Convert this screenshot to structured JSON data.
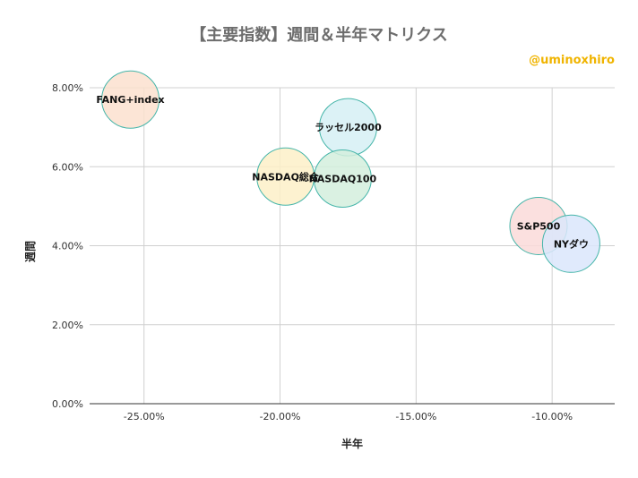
{
  "chart_data": {
    "type": "bubble",
    "title": "【主要指数】週間＆半年マトリクス",
    "watermark": "@uminoxhiro",
    "xlabel": "半年",
    "ylabel": "週間",
    "xlim": [
      -0.27,
      -0.077
    ],
    "ylim": [
      0,
      0.08
    ],
    "xticks": [
      {
        "value": -0.25,
        "label": "-25.00%"
      },
      {
        "value": -0.2,
        "label": "-20.00%"
      },
      {
        "value": -0.15,
        "label": "-15.00%"
      },
      {
        "value": -0.1,
        "label": "-10.00%"
      }
    ],
    "yticks": [
      {
        "value": 0.0,
        "label": "0.00%"
      },
      {
        "value": 0.02,
        "label": "2.00%"
      },
      {
        "value": 0.04,
        "label": "4.00%"
      },
      {
        "value": 0.06,
        "label": "6.00%"
      },
      {
        "value": 0.08,
        "label": "8.00%"
      }
    ],
    "grid": true,
    "points": [
      {
        "label": "FANG+index",
        "x": -0.255,
        "y": 0.077,
        "color": "#fbe0cf",
        "stroke": "#45b5a9"
      },
      {
        "label": "ラッセル2000",
        "x": -0.175,
        "y": 0.07,
        "color": "#d6f0f4",
        "stroke": "#45b5a9"
      },
      {
        "label": "NASDAQ総合",
        "x": -0.198,
        "y": 0.0575,
        "color": "#fdf0c8",
        "stroke": "#45b5a9"
      },
      {
        "label": "NASDAQ100",
        "x": -0.177,
        "y": 0.057,
        "color": "#d3eedd",
        "stroke": "#45b5a9"
      },
      {
        "label": "S&P500",
        "x": -0.105,
        "y": 0.045,
        "color": "#fadad9",
        "stroke": "#45b5a9"
      },
      {
        "label": "NYダウ",
        "x": -0.093,
        "y": 0.0405,
        "color": "#dbe6fb",
        "stroke": "#45b5a9"
      }
    ],
    "colors": {
      "title": "#6d6d6d",
      "watermark": "#f0b400",
      "grid": "#d0d0d0",
      "axis": "#333333"
    }
  }
}
